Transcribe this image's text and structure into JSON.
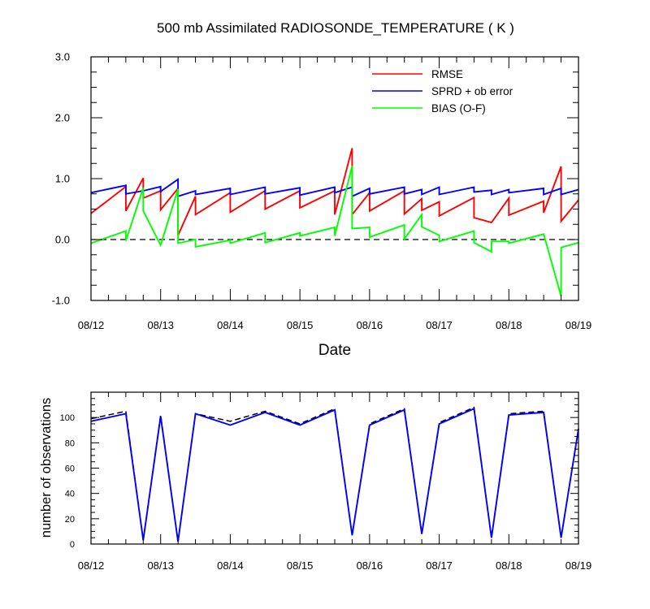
{
  "chart_data": [
    {
      "type": "line",
      "title": "500 mb Assimilated RADIOSONDE_TEMPERATURE ( K )",
      "xlabel": "Date",
      "ylabel": "",
      "xlim": [
        0,
        7
      ],
      "ylim": [
        -1.0,
        3.0
      ],
      "x_tick_labels": [
        "08/12",
        "08/13",
        "08/14",
        "08/15",
        "08/16",
        "08/17",
        "08/18",
        "08/19"
      ],
      "y_tick_labels": [
        "-1.0",
        "0.0",
        "1.0",
        "2.0",
        "3.0"
      ],
      "y_ticks": [
        -1.0,
        0.0,
        1.0,
        2.0,
        3.0
      ],
      "reference_line": 0.0,
      "legend_position": "top-right",
      "legend": [
        "RMSE",
        "SPRD + ob error",
        "BIAS (O-F)"
      ],
      "series": [
        {
          "name": "RMSE",
          "color": "#ff0000",
          "points": [
            [
              0.0,
              0.43
            ],
            [
              0.5,
              0.87
            ],
            [
              0.5,
              0.47
            ],
            [
              0.75,
              1.01
            ],
            [
              0.75,
              0.68
            ],
            [
              1.0,
              0.8
            ],
            [
              1.0,
              0.49
            ],
            [
              1.25,
              0.84
            ],
            [
              1.25,
              0.07
            ],
            [
              1.5,
              0.71
            ],
            [
              1.5,
              0.41
            ],
            [
              2.0,
              0.77
            ],
            [
              2.0,
              0.45
            ],
            [
              2.5,
              0.8
            ],
            [
              2.5,
              0.5
            ],
            [
              3.0,
              0.8
            ],
            [
              3.0,
              0.52
            ],
            [
              3.5,
              0.8
            ],
            [
              3.5,
              0.41
            ],
            [
              3.75,
              1.5
            ],
            [
              3.75,
              0.41
            ],
            [
              4.0,
              0.77
            ],
            [
              4.0,
              0.47
            ],
            [
              4.5,
              0.8
            ],
            [
              4.5,
              0.42
            ],
            [
              4.75,
              0.67
            ],
            [
              4.75,
              0.48
            ],
            [
              5.0,
              0.62
            ],
            [
              5.0,
              0.39
            ],
            [
              5.5,
              0.69
            ],
            [
              5.5,
              0.36
            ],
            [
              5.75,
              0.28
            ],
            [
              6.0,
              0.68
            ],
            [
              6.0,
              0.4
            ],
            [
              6.5,
              0.63
            ],
            [
              6.5,
              0.44
            ],
            [
              6.75,
              1.2
            ],
            [
              6.75,
              0.3
            ],
            [
              7.0,
              0.65
            ]
          ]
        },
        {
          "name": "SPRD + ob error",
          "color": "#0000ff",
          "points": [
            [
              0.0,
              0.77
            ],
            [
              0.5,
              0.89
            ],
            [
              0.5,
              0.75
            ],
            [
              0.75,
              0.8
            ],
            [
              1.0,
              0.87
            ],
            [
              1.0,
              0.79
            ],
            [
              1.25,
              0.99
            ],
            [
              1.25,
              0.71
            ],
            [
              1.5,
              0.8
            ],
            [
              1.5,
              0.74
            ],
            [
              2.0,
              0.84
            ],
            [
              2.0,
              0.74
            ],
            [
              2.5,
              0.86
            ],
            [
              2.5,
              0.75
            ],
            [
              3.0,
              0.85
            ],
            [
              3.0,
              0.73
            ],
            [
              3.5,
              0.86
            ],
            [
              3.5,
              0.77
            ],
            [
              3.75,
              0.86
            ],
            [
              3.75,
              0.71
            ],
            [
              4.0,
              0.84
            ],
            [
              4.0,
              0.75
            ],
            [
              4.5,
              0.86
            ],
            [
              4.5,
              0.75
            ],
            [
              4.75,
              0.82
            ],
            [
              4.75,
              0.74
            ],
            [
              5.0,
              0.86
            ],
            [
              5.0,
              0.74
            ],
            [
              5.5,
              0.86
            ],
            [
              5.5,
              0.78
            ],
            [
              5.75,
              0.81
            ],
            [
              5.75,
              0.74
            ],
            [
              6.0,
              0.82
            ],
            [
              6.0,
              0.77
            ],
            [
              6.5,
              0.84
            ],
            [
              6.5,
              0.74
            ],
            [
              6.75,
              0.84
            ],
            [
              6.75,
              0.74
            ],
            [
              7.0,
              0.82
            ]
          ]
        },
        {
          "name": "BIAS (O-F)",
          "color": "#00ff00",
          "points": [
            [
              0.0,
              -0.06
            ],
            [
              0.5,
              0.14
            ],
            [
              0.5,
              -0.02
            ],
            [
              0.75,
              0.85
            ],
            [
              0.75,
              0.47
            ],
            [
              1.0,
              -0.09
            ],
            [
              1.25,
              0.83
            ],
            [
              1.25,
              -0.06
            ],
            [
              1.5,
              0.0
            ],
            [
              1.5,
              -0.12
            ],
            [
              2.0,
              -0.01
            ],
            [
              2.0,
              -0.06
            ],
            [
              2.5,
              0.11
            ],
            [
              2.5,
              -0.05
            ],
            [
              3.0,
              0.11
            ],
            [
              3.0,
              0.06
            ],
            [
              3.5,
              0.2
            ],
            [
              3.5,
              0.06
            ],
            [
              3.75,
              1.21
            ],
            [
              3.75,
              0.18
            ],
            [
              4.0,
              0.2
            ],
            [
              4.0,
              0.04
            ],
            [
              4.5,
              0.24
            ],
            [
              4.5,
              0.01
            ],
            [
              4.75,
              0.41
            ],
            [
              4.75,
              0.21
            ],
            [
              5.0,
              0.07
            ],
            [
              5.0,
              -0.03
            ],
            [
              5.5,
              0.14
            ],
            [
              5.5,
              -0.05
            ],
            [
              5.75,
              -0.2
            ],
            [
              5.75,
              -0.03
            ],
            [
              6.0,
              -0.03
            ],
            [
              6.0,
              -0.06
            ],
            [
              6.5,
              0.09
            ],
            [
              6.75,
              -0.93
            ],
            [
              6.75,
              -0.13
            ],
            [
              7.0,
              -0.05
            ]
          ]
        }
      ]
    },
    {
      "type": "line",
      "title": "",
      "xlabel": "",
      "ylabel": "number of observations",
      "xlim": [
        0,
        7
      ],
      "ylim": [
        0,
        120
      ],
      "x_tick_labels": [
        "08/12",
        "08/13",
        "08/14",
        "08/15",
        "08/16",
        "08/17",
        "08/18",
        "08/19"
      ],
      "y_tick_labels": [
        "0",
        "20",
        "40",
        "60",
        "80",
        "100"
      ],
      "y_ticks": [
        0,
        20,
        40,
        60,
        80,
        100
      ],
      "series": [
        {
          "name": "observations (dashed)",
          "color": "#000000",
          "dashed": true,
          "points": [
            [
              0.0,
              99
            ],
            [
              0.5,
              105
            ],
            [
              0.75,
              3
            ],
            [
              1.0,
              102
            ],
            [
              1.25,
              2
            ],
            [
              1.5,
              103
            ],
            [
              2.0,
              97
            ],
            [
              2.5,
              105
            ],
            [
              3.0,
              95
            ],
            [
              3.5,
              107
            ],
            [
              3.75,
              7
            ],
            [
              4.0,
              95
            ],
            [
              4.5,
              107
            ],
            [
              4.75,
              8
            ],
            [
              5.0,
              96
            ],
            [
              5.5,
              108
            ],
            [
              5.75,
              5
            ],
            [
              6.0,
              103
            ],
            [
              6.5,
              105
            ],
            [
              6.75,
              5
            ],
            [
              7.0,
              91
            ]
          ]
        },
        {
          "name": "observations",
          "color": "#0000ff",
          "points": [
            [
              0.0,
              97
            ],
            [
              0.5,
              103
            ],
            [
              0.75,
              3
            ],
            [
              1.0,
              101
            ],
            [
              1.25,
              2
            ],
            [
              1.5,
              103
            ],
            [
              2.0,
              94
            ],
            [
              2.5,
              104
            ],
            [
              3.0,
              94
            ],
            [
              3.5,
              106
            ],
            [
              3.75,
              7
            ],
            [
              4.0,
              94
            ],
            [
              4.5,
              106
            ],
            [
              4.75,
              8
            ],
            [
              5.0,
              95
            ],
            [
              5.5,
              107
            ],
            [
              5.75,
              5
            ],
            [
              6.0,
              102
            ],
            [
              6.5,
              104
            ],
            [
              6.75,
              5
            ],
            [
              7.0,
              91
            ]
          ]
        }
      ]
    }
  ]
}
